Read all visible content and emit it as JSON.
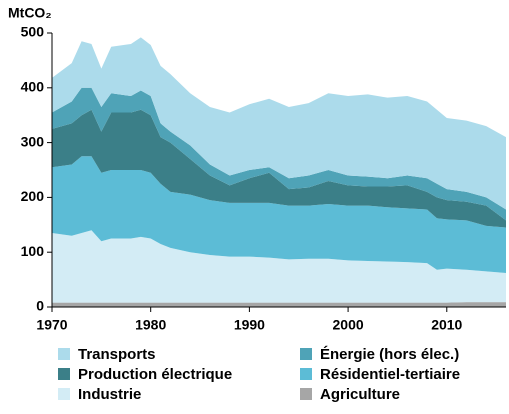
{
  "chart_data": {
    "type": "stacked_area",
    "y_label": "MtCO₂",
    "x": [
      1970,
      1972,
      1973,
      1974,
      1975,
      1976,
      1978,
      1979,
      1980,
      1981,
      1982,
      1984,
      1986,
      1988,
      1990,
      1992,
      1994,
      1996,
      1998,
      2000,
      2002,
      2004,
      2006,
      2008,
      2009,
      2010,
      2012,
      2014,
      2016
    ],
    "xlim": [
      1970,
      2016
    ],
    "xticks": [
      1970,
      1980,
      1990,
      2000,
      2010
    ],
    "ylim": [
      0,
      500
    ],
    "yticks": [
      0,
      100,
      200,
      300,
      400,
      500
    ],
    "series": [
      {
        "name": "Agriculture",
        "color": "#a6a6a6",
        "values": [
          8,
          8,
          8,
          8,
          8,
          8,
          8,
          8,
          8,
          8,
          8,
          8,
          8,
          8,
          8,
          8,
          8,
          8,
          8,
          8,
          8,
          8,
          8,
          8,
          8,
          8,
          9,
          9,
          9
        ]
      },
      {
        "name": "Industrie",
        "color": "#d3ecf5",
        "values": [
          127,
          122,
          127,
          132,
          112,
          117,
          117,
          120,
          117,
          107,
          100,
          92,
          87,
          84,
          84,
          82,
          79,
          80,
          80,
          77,
          76,
          75,
          74,
          72,
          60,
          62,
          59,
          56,
          53
        ]
      },
      {
        "name": "Résidentiel-tertiaire",
        "color": "#5cbcd6",
        "values": [
          120,
          130,
          140,
          135,
          125,
          125,
          125,
          122,
          120,
          110,
          102,
          105,
          100,
          98,
          98,
          100,
          98,
          97,
          100,
          100,
          101,
          99,
          98,
          98,
          94,
          90,
          90,
          83,
          83
        ]
      },
      {
        "name": "Production électrique",
        "color": "#3b7f88",
        "values": [
          70,
          75,
          75,
          85,
          75,
          105,
          105,
          110,
          105,
          85,
          90,
          65,
          45,
          32,
          45,
          55,
          30,
          33,
          42,
          37,
          35,
          38,
          42,
          32,
          38,
          35,
          34,
          37,
          13
        ]
      },
      {
        "name": "Énergie (hors élec.)",
        "color": "#4fa3b7",
        "values": [
          30,
          40,
          50,
          40,
          45,
          35,
          30,
          35,
          35,
          25,
          20,
          25,
          20,
          18,
          15,
          10,
          20,
          22,
          20,
          18,
          18,
          15,
          18,
          25,
          25,
          20,
          18,
          15,
          20
        ]
      },
      {
        "name": "Transports",
        "color": "#acdbeb",
        "values": [
          63,
          70,
          85,
          80,
          70,
          85,
          95,
          97,
          93,
          105,
          105,
          95,
          105,
          115,
          120,
          125,
          130,
          132,
          140,
          145,
          150,
          147,
          145,
          140,
          135,
          130,
          130,
          130,
          132
        ]
      }
    ],
    "legend_order": [
      5,
      4,
      3,
      2,
      1,
      0
    ]
  }
}
